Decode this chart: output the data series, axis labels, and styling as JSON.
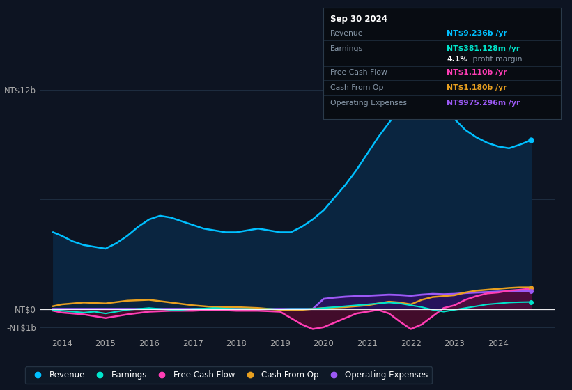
{
  "bg_color": "#0d1422",
  "plot_bg_color": "#0d1422",
  "gridline_color": "#1e2d40",
  "zero_line_color": "#ffffff",
  "revenue_color": "#00bfff",
  "revenue_fill": "#0a2540",
  "earnings_color": "#00e5cc",
  "free_cash_flow_color": "#ff3eb5",
  "cash_from_op_color": "#e8a020",
  "op_expenses_color": "#9b59f5",
  "op_expenses_fill": "#2d1060",
  "fcf_fill": "#5a0a30",
  "x_ticks": [
    2014,
    2015,
    2016,
    2017,
    2018,
    2019,
    2020,
    2021,
    2022,
    2023,
    2024
  ],
  "ylim_min": -1450000000.0,
  "ylim_max": 13500000000.0,
  "xlim_start": 2013.5,
  "xlim_end": 2025.3,
  "tooltip": {
    "date": "Sep 30 2024",
    "revenue_label": "Revenue",
    "revenue_value": "NT$9.236b /yr",
    "revenue_color": "#00bfff",
    "earnings_label": "Earnings",
    "earnings_value": "NT$381.128m /yr",
    "earnings_color": "#00e5cc",
    "margin_pct": "4.1%",
    "margin_text": " profit margin",
    "fcf_label": "Free Cash Flow",
    "fcf_value": "NT$1.110b /yr",
    "fcf_color": "#ff3eb5",
    "cfo_label": "Cash From Op",
    "cfo_value": "NT$1.180b /yr",
    "cfo_color": "#e8a020",
    "opex_label": "Operating Expenses",
    "opex_value": "NT$975.296m /yr",
    "opex_color": "#9b59f5"
  },
  "legend": [
    {
      "label": "Revenue",
      "color": "#00bfff"
    },
    {
      "label": "Earnings",
      "color": "#00e5cc"
    },
    {
      "label": "Free Cash Flow",
      "color": "#ff3eb5"
    },
    {
      "label": "Cash From Op",
      "color": "#e8a020"
    },
    {
      "label": "Operating Expenses",
      "color": "#9b59f5"
    }
  ],
  "revenue_x": [
    2013.8,
    2014.0,
    2014.25,
    2014.5,
    2014.75,
    2015.0,
    2015.25,
    2015.5,
    2015.75,
    2016.0,
    2016.25,
    2016.5,
    2016.75,
    2017.0,
    2017.25,
    2017.5,
    2017.75,
    2018.0,
    2018.25,
    2018.5,
    2018.75,
    2019.0,
    2019.25,
    2019.5,
    2019.75,
    2020.0,
    2020.25,
    2020.5,
    2020.75,
    2021.0,
    2021.25,
    2021.5,
    2021.75,
    2022.0,
    2022.25,
    2022.5,
    2022.75,
    2023.0,
    2023.25,
    2023.5,
    2023.75,
    2024.0,
    2024.25,
    2024.5,
    2024.75
  ],
  "revenue_y": [
    4200000000.0,
    4000000000.0,
    3700000000.0,
    3500000000.0,
    3400000000.0,
    3300000000.0,
    3600000000.0,
    4000000000.0,
    4500000000.0,
    4900000000.0,
    5100000000.0,
    5000000000.0,
    4800000000.0,
    4600000000.0,
    4400000000.0,
    4300000000.0,
    4200000000.0,
    4200000000.0,
    4300000000.0,
    4400000000.0,
    4300000000.0,
    4200000000.0,
    4200000000.0,
    4500000000.0,
    4900000000.0,
    5400000000.0,
    6100000000.0,
    6800000000.0,
    7600000000.0,
    8500000000.0,
    9400000000.0,
    10200000000.0,
    11000000000.0,
    11600000000.0,
    12000000000.0,
    11700000000.0,
    11100000000.0,
    10400000000.0,
    9800000000.0,
    9400000000.0,
    9100000000.0,
    8900000000.0,
    8800000000.0,
    9000000000.0,
    9236000000.0
  ],
  "earnings_x": [
    2013.8,
    2014.0,
    2014.25,
    2014.5,
    2014.75,
    2015.0,
    2015.25,
    2015.5,
    2015.75,
    2016.0,
    2016.25,
    2016.5,
    2016.75,
    2017.0,
    2017.25,
    2017.5,
    2017.75,
    2018.0,
    2018.25,
    2018.5,
    2018.75,
    2019.0,
    2019.25,
    2019.5,
    2019.75,
    2020.0,
    2020.25,
    2020.5,
    2020.75,
    2021.0,
    2021.25,
    2021.5,
    2021.75,
    2022.0,
    2022.25,
    2022.5,
    2022.75,
    2023.0,
    2023.25,
    2023.5,
    2023.75,
    2024.0,
    2024.25,
    2024.5,
    2024.75
  ],
  "earnings_y": [
    -50000000.0,
    -100000000.0,
    -150000000.0,
    -200000000.0,
    -150000000.0,
    -250000000.0,
    -150000000.0,
    -50000000.0,
    0.0,
    50000000.0,
    0.0,
    -50000000.0,
    -50000000.0,
    0.0,
    20000000.0,
    50000000.0,
    20000000.0,
    0.0,
    0.0,
    -20000000.0,
    0.0,
    -20000000.0,
    0.0,
    0.0,
    0.0,
    50000000.0,
    100000000.0,
    150000000.0,
    200000000.0,
    250000000.0,
    300000000.0,
    350000000.0,
    300000000.0,
    200000000.0,
    100000000.0,
    -50000000.0,
    -150000000.0,
    -50000000.0,
    50000000.0,
    150000000.0,
    250000000.0,
    300000000.0,
    350000000.0,
    370000000.0,
    381000000.0
  ],
  "fcf_x": [
    2013.8,
    2014.0,
    2014.5,
    2015.0,
    2015.5,
    2016.0,
    2016.5,
    2017.0,
    2017.5,
    2018.0,
    2018.5,
    2019.0,
    2019.25,
    2019.5,
    2019.75,
    2020.0,
    2020.25,
    2020.5,
    2020.75,
    2021.0,
    2021.25,
    2021.5,
    2021.75,
    2022.0,
    2022.25,
    2022.5,
    2022.75,
    2023.0,
    2023.25,
    2023.5,
    2023.75,
    2024.0,
    2024.25,
    2024.5,
    2024.75
  ],
  "fcf_y": [
    -100000000.0,
    -200000000.0,
    -300000000.0,
    -500000000.0,
    -300000000.0,
    -150000000.0,
    -100000000.0,
    -100000000.0,
    -50000000.0,
    -100000000.0,
    -100000000.0,
    -150000000.0,
    -500000000.0,
    -850000000.0,
    -1100000000.0,
    -1000000000.0,
    -750000000.0,
    -500000000.0,
    -250000000.0,
    -150000000.0,
    -50000000.0,
    -250000000.0,
    -700000000.0,
    -1100000000.0,
    -850000000.0,
    -400000000.0,
    50000000.0,
    200000000.0,
    500000000.0,
    700000000.0,
    850000000.0,
    900000000.0,
    1000000000.0,
    1050000000.0,
    1110000000.0
  ],
  "cfo_x": [
    2013.8,
    2014.0,
    2014.5,
    2015.0,
    2015.5,
    2016.0,
    2016.5,
    2017.0,
    2017.5,
    2018.0,
    2018.5,
    2019.0,
    2019.5,
    2020.0,
    2020.5,
    2021.0,
    2021.25,
    2021.5,
    2021.75,
    2022.0,
    2022.25,
    2022.5,
    2022.75,
    2023.0,
    2023.25,
    2023.5,
    2023.75,
    2024.0,
    2024.25,
    2024.5,
    2024.75
  ],
  "cfo_y": [
    150000000.0,
    250000000.0,
    350000000.0,
    300000000.0,
    450000000.0,
    500000000.0,
    350000000.0,
    200000000.0,
    100000000.0,
    100000000.0,
    50000000.0,
    -50000000.0,
    -50000000.0,
    50000000.0,
    100000000.0,
    200000000.0,
    300000000.0,
    400000000.0,
    350000000.0,
    250000000.0,
    500000000.0,
    650000000.0,
    700000000.0,
    750000000.0,
    900000000.0,
    1000000000.0,
    1050000000.0,
    1100000000.0,
    1150000000.0,
    1180000000.0,
    1180000000.0
  ],
  "opex_x": [
    2013.8,
    2019.75,
    2020.0,
    2020.25,
    2020.5,
    2020.75,
    2021.0,
    2021.25,
    2021.5,
    2021.75,
    2022.0,
    2022.25,
    2022.5,
    2022.75,
    2023.0,
    2023.25,
    2023.5,
    2023.75,
    2024.0,
    2024.25,
    2024.5,
    2024.75
  ],
  "opex_y": [
    0.0,
    0.0,
    550000000.0,
    620000000.0,
    670000000.0,
    700000000.0,
    720000000.0,
    750000000.0,
    780000000.0,
    760000000.0,
    720000000.0,
    780000000.0,
    820000000.0,
    800000000.0,
    820000000.0,
    870000000.0,
    900000000.0,
    920000000.0,
    950000000.0,
    960000000.0,
    975000000.0,
    975000000.0
  ]
}
